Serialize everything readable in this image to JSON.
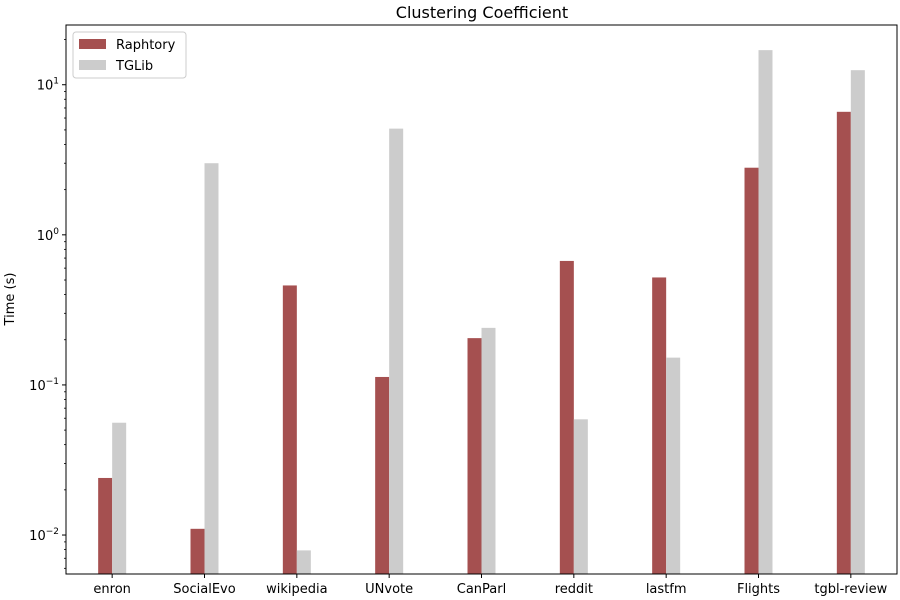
{
  "chart_data": {
    "type": "bar",
    "title": "Clustering Coefficient",
    "xlabel": "",
    "ylabel": "Time (s)",
    "yscale": "log",
    "ylim": [
      0.0055,
      25
    ],
    "yticks": [
      {
        "value": 0.01,
        "base": "10",
        "exp": "−2"
      },
      {
        "value": 0.1,
        "base": "10",
        "exp": "−1"
      },
      {
        "value": 1,
        "base": "10",
        "exp": "0"
      },
      {
        "value": 10,
        "base": "10",
        "exp": "1"
      }
    ],
    "categories": [
      "enron",
      "SocialEvo",
      "wikipedia",
      "UNvote",
      "CanParl",
      "reddit",
      "lastfm",
      "Flights",
      "tgbl-review"
    ],
    "series": [
      {
        "name": "Raphtory",
        "color": "#a55050",
        "values": [
          0.024,
          0.011,
          0.46,
          0.113,
          0.205,
          0.67,
          0.52,
          2.8,
          6.6
        ]
      },
      {
        "name": "TGLib",
        "color": "#cccccc",
        "values": [
          0.056,
          3.0,
          0.0079,
          5.1,
          0.24,
          0.059,
          0.152,
          17.0,
          12.5
        ]
      }
    ],
    "grid": false,
    "legend": "top-left"
  }
}
